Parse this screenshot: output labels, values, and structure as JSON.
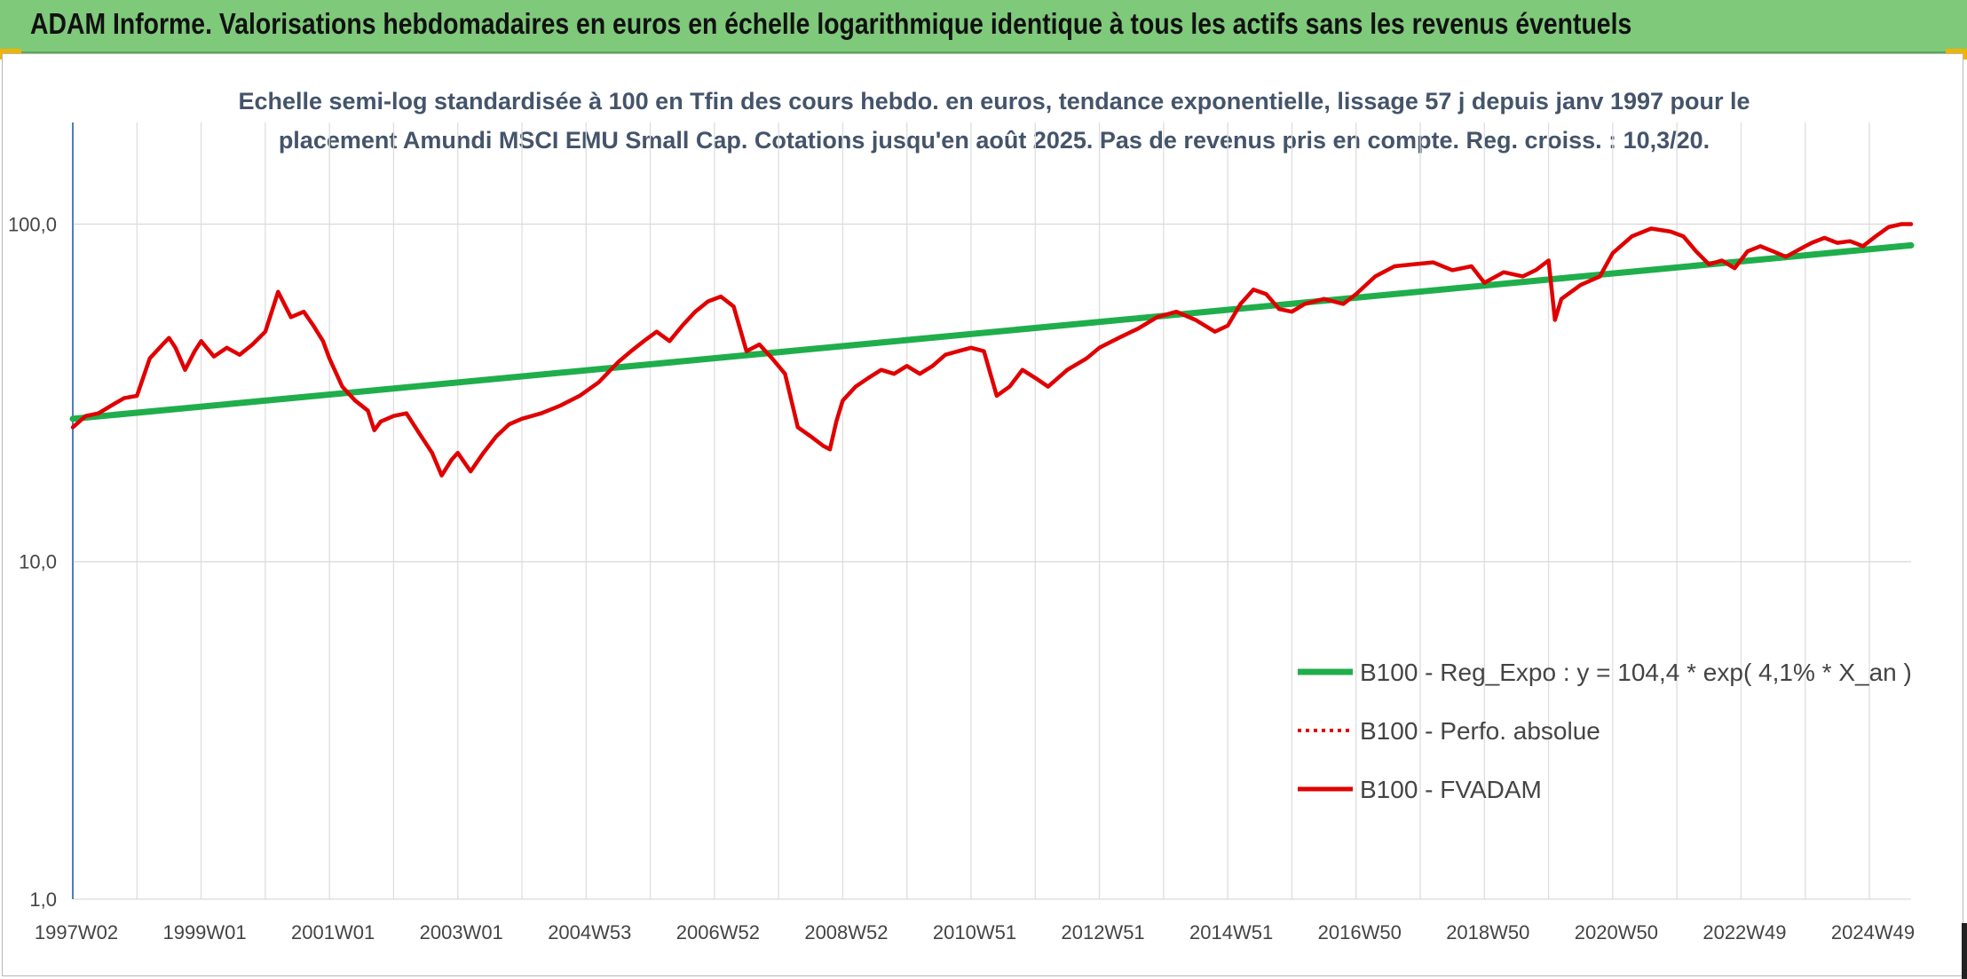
{
  "header": {
    "title": "ADAM Informe. Valorisations hebdomadaires en euros en échelle logarithmique identique à tous les actifs sans les revenus éventuels"
  },
  "chart_data": {
    "type": "line",
    "title_lines": [
      "Echelle semi-log standardisée à 100 en Tfin des cours hebdo. en euros, tendance exponentielle, lissage 57 j depuis janv 1997 pour le",
      "placement Amundi MSCI EMU Small Cap. Cotations jusqu'en août 2025. Pas de revenus pris en compte. Reg. croiss. : 10,3/20."
    ],
    "xlabel": "",
    "ylabel": "",
    "y_scale": "log",
    "ylim": [
      1,
      200
    ],
    "x_range": [
      1997.0,
      2025.65
    ],
    "y_ticks": [
      {
        "value": 1,
        "label": "1,0"
      },
      {
        "value": 10,
        "label": "10,0"
      },
      {
        "value": 100,
        "label": "100,0"
      }
    ],
    "x_ticks": [
      {
        "x": 1997.0,
        "label": "1997W02"
      },
      {
        "x": 1999.0,
        "label": "1999W01"
      },
      {
        "x": 2001.0,
        "label": "2001W01"
      },
      {
        "x": 2003.0,
        "label": "2003W01"
      },
      {
        "x": 2005.0,
        "label": "2004W53"
      },
      {
        "x": 2007.0,
        "label": "2006W52"
      },
      {
        "x": 2009.0,
        "label": "2008W52"
      },
      {
        "x": 2011.0,
        "label": "2010W51"
      },
      {
        "x": 2013.0,
        "label": "2012W51"
      },
      {
        "x": 2015.0,
        "label": "2014W51"
      },
      {
        "x": 2017.0,
        "label": "2016W50"
      },
      {
        "x": 2019.0,
        "label": "2018W50"
      },
      {
        "x": 2021.0,
        "label": "2020W50"
      },
      {
        "x": 2023.0,
        "label": "2022W49"
      },
      {
        "x": 2025.0,
        "label": "2024W49"
      }
    ],
    "grid": true,
    "legend_position": "bottom-right",
    "series": [
      {
        "name": "B100 - Reg_Expo : y = 104,4 * exp( 4,1% *  X_an )",
        "color": "#1fae4b",
        "style": "solid",
        "x": [
          1997.0,
          2025.65
        ],
        "y": [
          26.5,
          86.5
        ]
      },
      {
        "name": "B100 - Perfo. absolue",
        "color": "#e00000",
        "style": "dotted",
        "x": [],
        "y": []
      },
      {
        "name": "B100 - FVADAM",
        "color": "#e00000",
        "style": "solid",
        "x": [
          1997.0,
          1997.2,
          1997.4,
          1997.6,
          1997.8,
          1998.0,
          1998.2,
          1998.4,
          1998.5,
          1998.6,
          1998.75,
          1998.9,
          1999.0,
          1999.2,
          1999.4,
          1999.6,
          1999.8,
          2000.0,
          2000.2,
          2000.4,
          2000.6,
          2000.75,
          2000.9,
          2001.0,
          2001.2,
          2001.4,
          2001.6,
          2001.7,
          2001.8,
          2002.0,
          2002.2,
          2002.4,
          2002.6,
          2002.75,
          2002.9,
          2003.0,
          2003.2,
          2003.4,
          2003.6,
          2003.8,
          2004.0,
          2004.3,
          2004.6,
          2004.9,
          2005.2,
          2005.5,
          2005.7,
          2005.9,
          2006.1,
          2006.3,
          2006.5,
          2006.7,
          2006.9,
          2007.1,
          2007.3,
          2007.5,
          2007.7,
          2007.9,
          2008.1,
          2008.3,
          2008.5,
          2008.7,
          2008.8,
          2008.9,
          2009.0,
          2009.2,
          2009.4,
          2009.6,
          2009.8,
          2010.0,
          2010.2,
          2010.4,
          2010.6,
          2010.8,
          2011.0,
          2011.2,
          2011.4,
          2011.6,
          2011.8,
          2012.0,
          2012.2,
          2012.5,
          2012.8,
          2013.0,
          2013.3,
          2013.6,
          2013.9,
          2014.2,
          2014.5,
          2014.8,
          2015.0,
          2015.2,
          2015.4,
          2015.6,
          2015.8,
          2016.0,
          2016.2,
          2016.5,
          2016.8,
          2017.0,
          2017.3,
          2017.6,
          2017.9,
          2018.2,
          2018.5,
          2018.8,
          2019.0,
          2019.3,
          2019.6,
          2019.8,
          2020.0,
          2020.1,
          2020.2,
          2020.5,
          2020.8,
          2021.0,
          2021.3,
          2021.6,
          2021.9,
          2022.1,
          2022.3,
          2022.5,
          2022.7,
          2022.9,
          2023.1,
          2023.3,
          2023.5,
          2023.7,
          2023.9,
          2024.1,
          2024.3,
          2024.5,
          2024.7,
          2024.9,
          2025.1,
          2025.3,
          2025.5,
          2025.65
        ],
        "y": [
          25.0,
          27.0,
          27.5,
          29.0,
          30.5,
          31.0,
          40.0,
          44.0,
          46.0,
          43.0,
          37.0,
          42.0,
          45.0,
          40.5,
          43.0,
          41.0,
          44.0,
          48.0,
          63.0,
          53.0,
          55.0,
          50.0,
          45.0,
          40.0,
          33.0,
          30.0,
          28.0,
          24.5,
          26.0,
          27.0,
          27.5,
          24.0,
          21.0,
          18.0,
          20.0,
          21.0,
          18.5,
          21.0,
          23.5,
          25.5,
          26.5,
          27.5,
          29.0,
          31.0,
          34.0,
          39.0,
          42.0,
          45.0,
          48.0,
          45.0,
          50.0,
          55.0,
          59.0,
          61.0,
          57.0,
          42.0,
          44.0,
          40.0,
          36.0,
          25.0,
          23.5,
          22.0,
          21.5,
          26.0,
          30.0,
          33.0,
          35.0,
          37.0,
          36.0,
          38.0,
          36.0,
          38.0,
          41.0,
          42.0,
          43.0,
          42.0,
          31.0,
          33.0,
          37.0,
          35.0,
          33.0,
          37.0,
          40.0,
          43.0,
          46.0,
          49.0,
          53.0,
          55.0,
          52.0,
          48.0,
          50.0,
          58.0,
          64.0,
          62.0,
          56.0,
          55.0,
          58.0,
          60.0,
          58.0,
          62.0,
          70.0,
          75.0,
          76.0,
          77.0,
          73.0,
          75.0,
          67.0,
          72.0,
          70.0,
          73.0,
          78.0,
          52.0,
          60.0,
          66.0,
          70.0,
          82.0,
          92.0,
          97.0,
          95.0,
          92.0,
          83.0,
          76.0,
          78.0,
          74.0,
          83.0,
          86.0,
          83.0,
          80.0,
          84.0,
          88.0,
          91.0,
          88.0,
          89.0,
          86.0,
          92.0,
          98.0,
          100.0,
          100.0
        ]
      }
    ]
  }
}
